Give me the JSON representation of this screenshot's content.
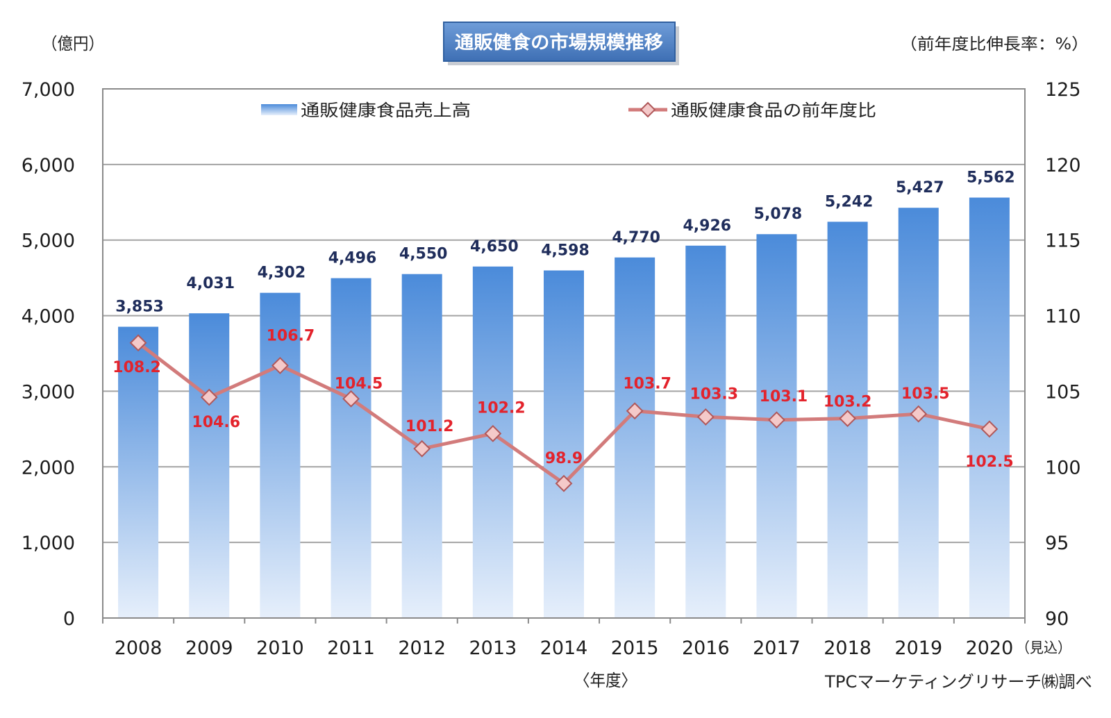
{
  "chart_data": {
    "type": "bar",
    "title": "通販健食の市場規模推移",
    "ylabel": "（億円）",
    "y2label": "（前年度比伸長率：%）",
    "xlabel": "〈年度〉",
    "categories": [
      "2008",
      "2009",
      "2010",
      "2011",
      "2012",
      "2013",
      "2014",
      "2015",
      "2016",
      "2017",
      "2018",
      "2019",
      "2020"
    ],
    "category_note": "（見込）",
    "ylim": [
      0,
      7000
    ],
    "y2lim": [
      90,
      125
    ],
    "y_tick_labels": [
      "0",
      "1,000",
      "2,000",
      "3,000",
      "4,000",
      "5,000",
      "6,000",
      "7,000"
    ],
    "y2_tick_labels": [
      "90",
      "95",
      "100",
      "105",
      "110",
      "115",
      "120",
      "125"
    ],
    "grid": true,
    "legend": "top-inside",
    "series": [
      {
        "name": "通販健康食品売上高",
        "type": "bar",
        "axis": "left",
        "values": [
          3853,
          4031,
          4302,
          4496,
          4550,
          4650,
          4598,
          4770,
          4926,
          5078,
          5242,
          5427,
          5562
        ],
        "labels": [
          "3,853",
          "4,031",
          "4,302",
          "4,496",
          "4,550",
          "4,650",
          "4,598",
          "4,770",
          "4,926",
          "5,078",
          "5,242",
          "5,427",
          "5,562"
        ]
      },
      {
        "name": "通販健康食品の前年度比",
        "type": "line",
        "axis": "right",
        "marker": "diamond",
        "values": [
          108.2,
          104.6,
          106.7,
          104.5,
          101.2,
          102.2,
          98.9,
          103.7,
          103.3,
          103.1,
          103.2,
          103.5,
          102.5
        ],
        "labels": [
          "108.2",
          "104.6",
          "106.7",
          "104.5",
          "101.2",
          "102.2",
          "98.9",
          "103.7",
          "103.3",
          "103.1",
          "103.2",
          "103.5",
          "102.5"
        ]
      }
    ],
    "source": "TPCマーケティングリサーチ㈱調べ"
  },
  "colors": {
    "title_box_top": "#6f9dd9",
    "title_box": "#3e6fb4",
    "bar_top": "#4b8bda",
    "bar_bottom": "#e6effb",
    "bar_label": "#1f2d5b",
    "line": "#d27b7b",
    "marker_fill": "#f4c9c9",
    "marker_stroke": "#b0585a",
    "line_label": "#e3232c",
    "grid": "#a3a3a3",
    "axis": "#8a8a8a"
  }
}
